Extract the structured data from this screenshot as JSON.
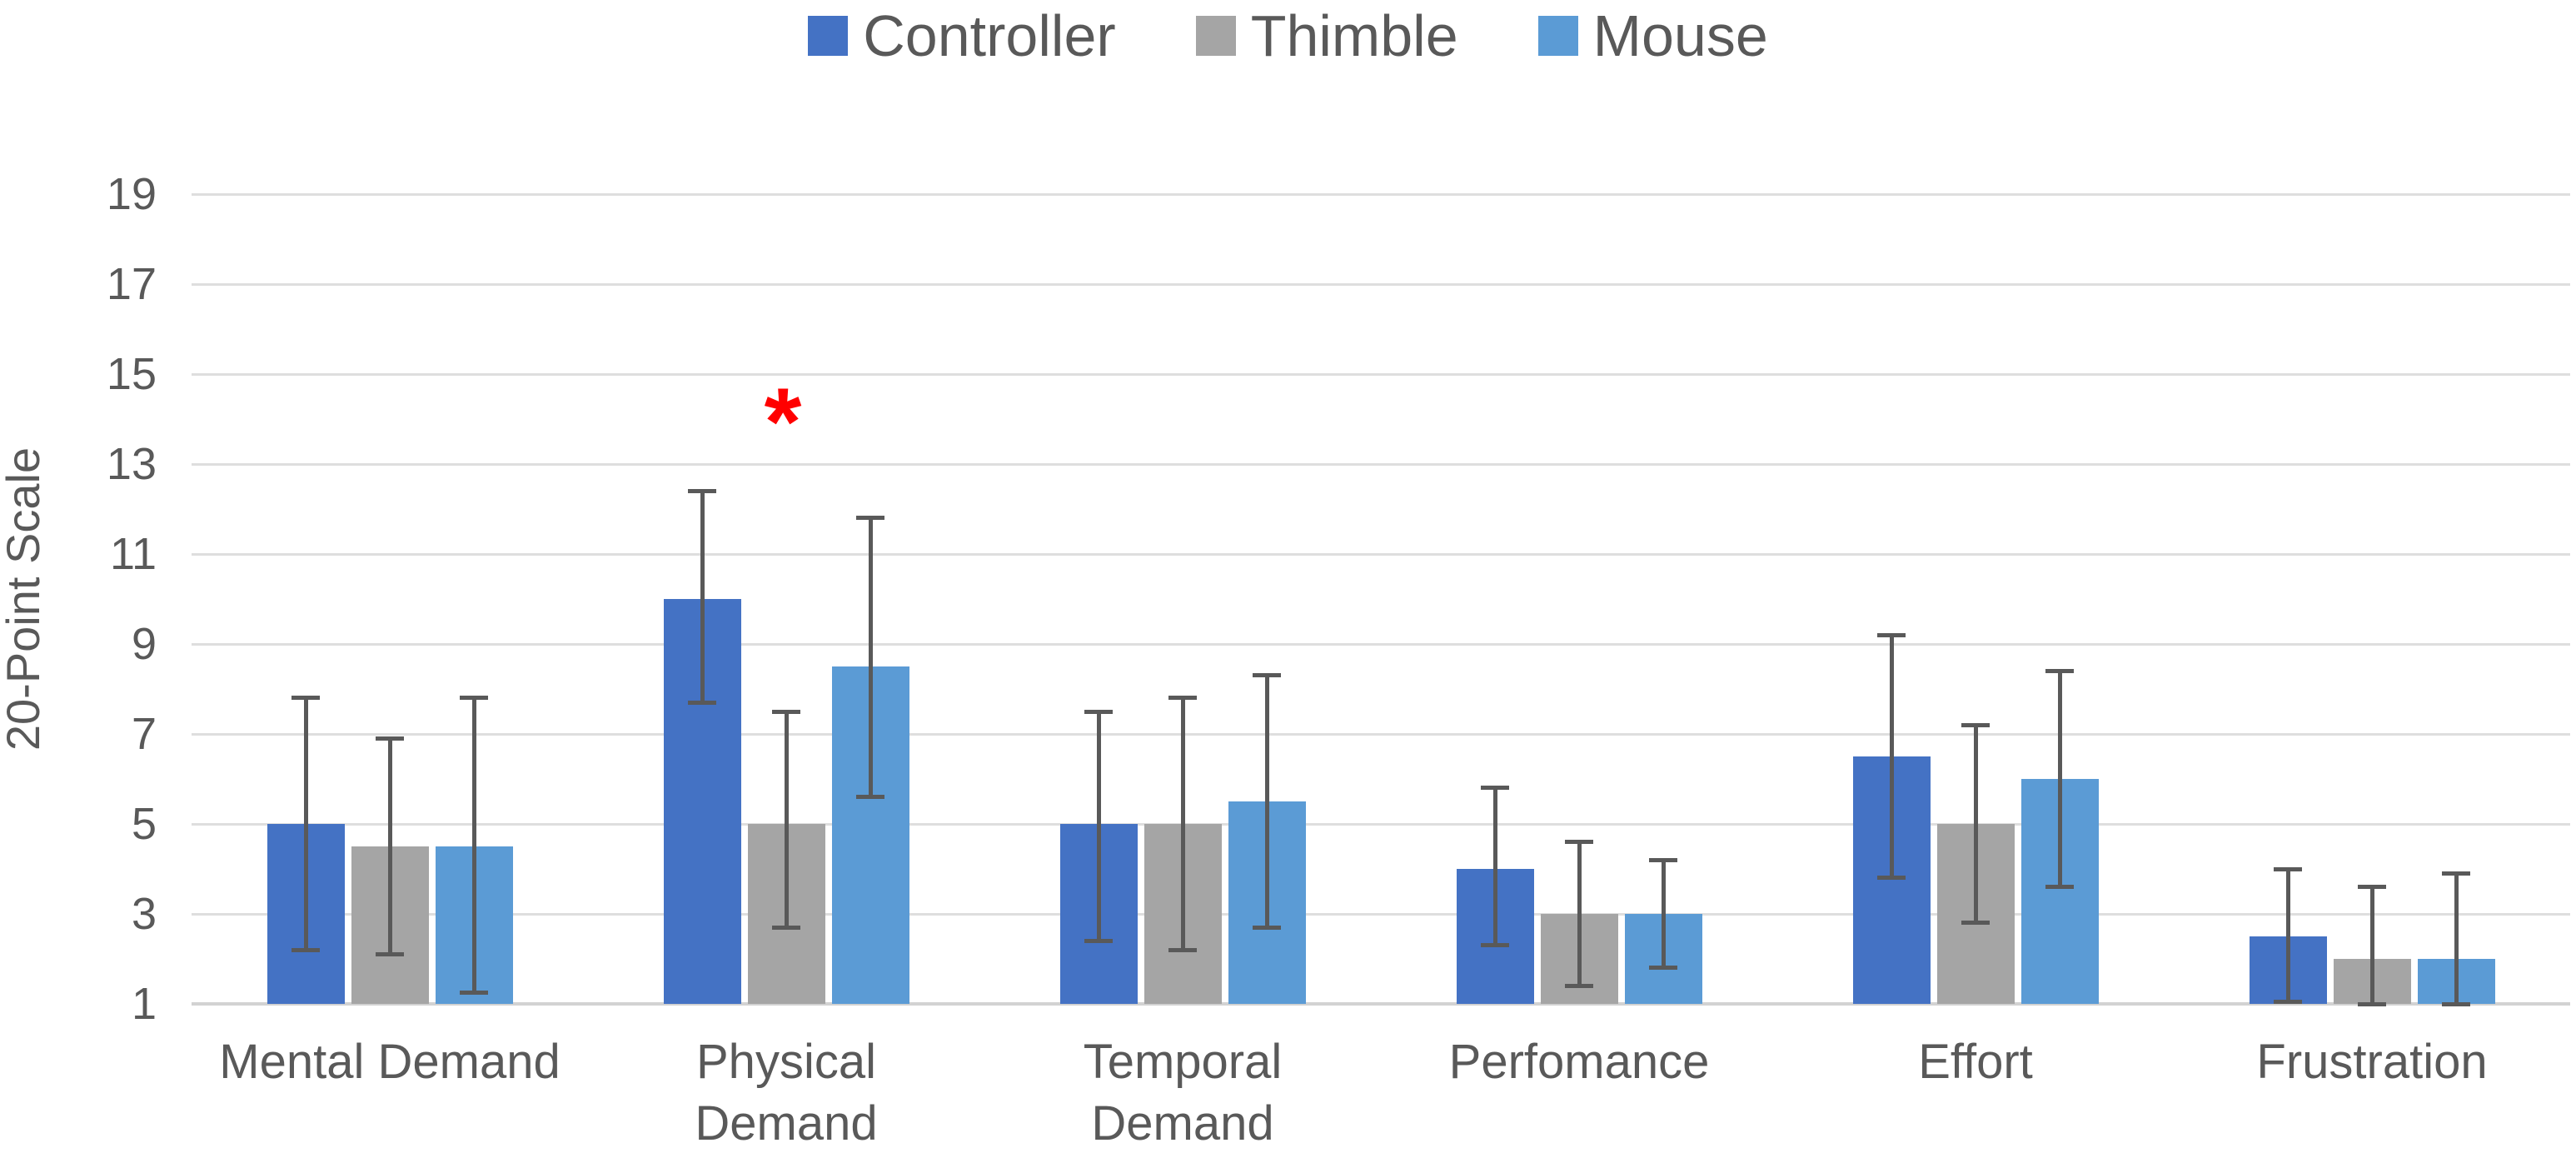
{
  "legend": {
    "items": [
      {
        "label": "Controller",
        "color": "#4472C4"
      },
      {
        "label": "Thimble",
        "color": "#A5A5A5"
      },
      {
        "label": "Mouse",
        "color": "#5B9BD5"
      }
    ]
  },
  "annotation": {
    "symbol": "*",
    "color": "#FF0000",
    "group": "Physical Demand",
    "value": 14.3
  },
  "chart_data": {
    "type": "bar",
    "title": "",
    "xlabel": "",
    "ylabel": "20-Point Scale",
    "ylim": [
      1,
      20.2
    ],
    "grid": true,
    "legend_position": "top",
    "y_ticks": [
      1,
      3,
      5,
      7,
      9,
      11,
      13,
      15,
      17,
      19
    ],
    "categories": [
      "Mental Demand",
      "Physical Demand",
      "Temporal Demand",
      "Perfomance",
      "Effort",
      "Frustration"
    ],
    "category_display_lines": [
      [
        "Mental Demand"
      ],
      [
        "Physical",
        "Demand"
      ],
      [
        "Temporal",
        "Demand"
      ],
      [
        "Perfomance"
      ],
      [
        "Effort"
      ],
      [
        "Frustration"
      ]
    ],
    "series": [
      {
        "name": "Controller",
        "color": "#4472C4",
        "values": [
          5.0,
          10.0,
          5.0,
          4.0,
          6.5,
          2.5
        ],
        "error_low": [
          2.2,
          7.7,
          2.4,
          2.3,
          3.8,
          1.05
        ],
        "error_high": [
          7.8,
          12.4,
          7.5,
          5.8,
          9.2,
          4.0
        ]
      },
      {
        "name": "Thimble",
        "color": "#A5A5A5",
        "values": [
          4.5,
          5.0,
          5.0,
          3.0,
          5.0,
          2.0
        ],
        "error_low": [
          2.1,
          2.7,
          2.2,
          1.4,
          2.8,
          1.0
        ],
        "error_high": [
          6.9,
          7.5,
          7.8,
          4.6,
          7.2,
          3.6
        ]
      },
      {
        "name": "Mouse",
        "color": "#5B9BD5",
        "values": [
          4.5,
          8.5,
          5.5,
          3.0,
          6.0,
          2.0
        ],
        "error_low": [
          1.25,
          5.6,
          2.7,
          1.8,
          3.6,
          1.0
        ],
        "error_high": [
          7.8,
          11.8,
          8.3,
          4.2,
          8.4,
          3.9
        ]
      }
    ],
    "error_bar_color": "#595959",
    "gridline_color": "#DEDEDE",
    "text_color": "#595959"
  }
}
